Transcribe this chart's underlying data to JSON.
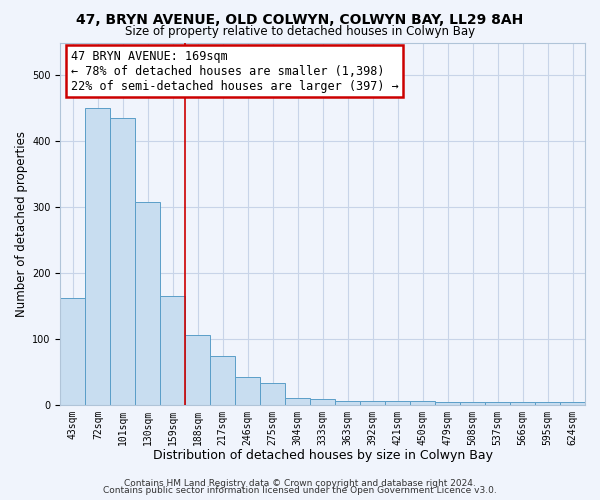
{
  "title": "47, BRYN AVENUE, OLD COLWYN, COLWYN BAY, LL29 8AH",
  "subtitle": "Size of property relative to detached houses in Colwyn Bay",
  "xlabel": "Distribution of detached houses by size in Colwyn Bay",
  "ylabel": "Number of detached properties",
  "bar_labels": [
    "43sqm",
    "72sqm",
    "101sqm",
    "130sqm",
    "159sqm",
    "188sqm",
    "217sqm",
    "246sqm",
    "275sqm",
    "304sqm",
    "333sqm",
    "363sqm",
    "392sqm",
    "421sqm",
    "450sqm",
    "479sqm",
    "508sqm",
    "537sqm",
    "566sqm",
    "595sqm",
    "624sqm"
  ],
  "bar_values": [
    163,
    450,
    435,
    308,
    165,
    107,
    75,
    43,
    33,
    11,
    10,
    6,
    6,
    6,
    6,
    5,
    5,
    5,
    5,
    5,
    5
  ],
  "bar_color": "#c8ddf0",
  "bar_edge_color": "#5a9ec8",
  "grid_color": "#c8d4e8",
  "background_color": "#f0f4fc",
  "red_line_x": 4.5,
  "annotation_text": "47 BRYN AVENUE: 169sqm\n← 78% of detached houses are smaller (1,398)\n22% of semi-detached houses are larger (397) →",
  "annotation_box_color": "#ffffff",
  "annotation_border_color": "#cc0000",
  "footer_line1": "Contains HM Land Registry data © Crown copyright and database right 2024.",
  "footer_line2": "Contains public sector information licensed under the Open Government Licence v3.0.",
  "ylim": [
    0,
    550
  ],
  "title_fontsize": 10,
  "subtitle_fontsize": 8.5,
  "xlabel_fontsize": 9,
  "ylabel_fontsize": 8.5,
  "tick_fontsize": 7,
  "annotation_fontsize": 8.5,
  "footer_fontsize": 6.5
}
